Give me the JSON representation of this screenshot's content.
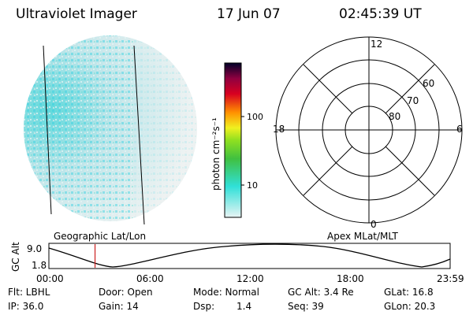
{
  "header": {
    "title": "Ultraviolet Imager",
    "date": "17 Jun 07",
    "time": "02:45:39 UT"
  },
  "colorbar": {
    "label": "photon cm⁻²s⁻¹",
    "ticks": [
      "100",
      "10"
    ],
    "colors": [
      "#e8f4f4",
      "#30e0d8",
      "#40c040",
      "#90e020",
      "#f0f020",
      "#ff9000",
      "#d80020",
      "#900040",
      "#000028"
    ]
  },
  "polar": {
    "mlt_labels": [
      "12",
      "18",
      "6",
      "0"
    ],
    "mlat_labels": [
      "60",
      "70",
      "80"
    ]
  },
  "panels": {
    "left_label": "Geographic Lat/Lon",
    "right_label": "Apex MLat/MLT"
  },
  "altitude_plot": {
    "ylabel": "GC Alt",
    "yticks": [
      "9.0",
      "1.8"
    ],
    "xticks": [
      "00:00",
      "06:00",
      "12:00",
      "18:00",
      "23:59"
    ],
    "marker_time": "02:45:39",
    "marker_color": "#cc2020"
  },
  "info": {
    "flt": "Flt: LBHL",
    "door": "Door: Open",
    "mode": "Mode: Normal",
    "gcalt": "GC Alt: 3.4 Re",
    "glat": "GLat:  16.8",
    "ip": "IP: 36.0",
    "gain": "Gain: 14",
    "dsp_label": "Dsp:",
    "dsp_val": "1.4",
    "seq": "Seq: 39",
    "glon": "GLon:  20.3"
  }
}
